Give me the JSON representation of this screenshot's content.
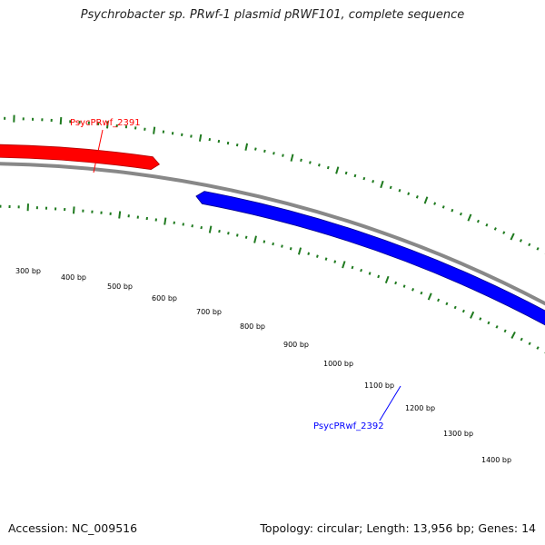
{
  "title": "Psychrobacter sp. PRwf-1 plasmid pRWF101, complete sequence",
  "footer": {
    "accession": "Accession: NC_009516",
    "summary": "Topology: circular; Length: 13,956 bp; Genes: 14"
  },
  "colors": {
    "backbone": "#888888",
    "tick": "#1f7a1f",
    "forward_gene": "#ff0000",
    "reverse_gene": "#0000ff"
  },
  "map": {
    "tick_labels": [
      "300 bp",
      "400 bp",
      "500 bp",
      "600 bp",
      "700 bp",
      "800 bp",
      "900 bp",
      "1000 bp",
      "1100 bp",
      "1200 bp",
      "1300 bp",
      "1400 bp"
    ],
    "genes": [
      {
        "name": "PsycPRwf_2391",
        "strand": "forward"
      },
      {
        "name": "PsycPRwf_2392",
        "strand": "reverse"
      }
    ]
  }
}
